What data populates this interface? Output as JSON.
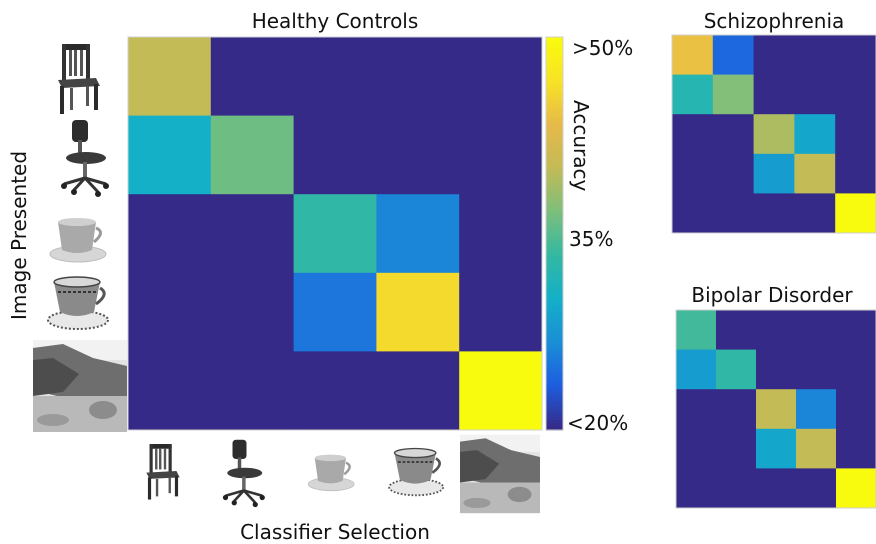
{
  "colors": {
    "background_low": "#352a87",
    "scale": [
      "#352a87",
      "#1e5ee0",
      "#1a8fd6",
      "#13b0c8",
      "#34b8a2",
      "#7cbf7c",
      "#c2bb56",
      "#e6b94a",
      "#f8e226",
      "#f9fb0e"
    ]
  },
  "icons": [
    "wooden-chair",
    "office-chair",
    "plain-teacup",
    "ornate-teacup",
    "coastal-landscape-photo"
  ],
  "chart_data": [
    {
      "id": "healthy",
      "type": "heatmap",
      "title": "Healthy Controls",
      "xlabel": "Classifier Selection",
      "ylabel": "Image Presented",
      "size": 5,
      "cells": [
        [
          0.4,
          0.2,
          0.2,
          0.2,
          0.2
        ],
        [
          0.3,
          0.36,
          0.2,
          0.2,
          0.2
        ],
        [
          0.2,
          0.2,
          0.33,
          0.26,
          0.2
        ],
        [
          0.2,
          0.2,
          0.25,
          0.46,
          0.2
        ],
        [
          0.2,
          0.2,
          0.2,
          0.2,
          0.5
        ]
      ],
      "colorbar": {
        "label": "Accuracy",
        "ticks": [
          ">50%",
          "35%",
          "<20%"
        ],
        "tick_values": [
          0.5,
          0.35,
          0.2
        ],
        "range": [
          0.2,
          0.5
        ]
      }
    },
    {
      "id": "schizophrenia",
      "type": "heatmap",
      "title": "Schizophrenia",
      "size": 5,
      "cells": [
        [
          0.44,
          0.24,
          0.2,
          0.2,
          0.2
        ],
        [
          0.32,
          0.37,
          0.2,
          0.2,
          0.2
        ],
        [
          0.2,
          0.2,
          0.39,
          0.29,
          0.2
        ],
        [
          0.2,
          0.2,
          0.28,
          0.4,
          0.2
        ],
        [
          0.2,
          0.2,
          0.2,
          0.2,
          0.5
        ]
      ]
    },
    {
      "id": "bipolar",
      "type": "heatmap",
      "title": "Bipolar Disorder",
      "size": 5,
      "cells": [
        [
          0.34,
          0.2,
          0.2,
          0.2,
          0.2
        ],
        [
          0.28,
          0.33,
          0.2,
          0.2,
          0.2
        ],
        [
          0.2,
          0.2,
          0.4,
          0.26,
          0.2
        ],
        [
          0.2,
          0.2,
          0.29,
          0.4,
          0.2
        ],
        [
          0.2,
          0.2,
          0.2,
          0.2,
          0.5
        ]
      ]
    }
  ]
}
